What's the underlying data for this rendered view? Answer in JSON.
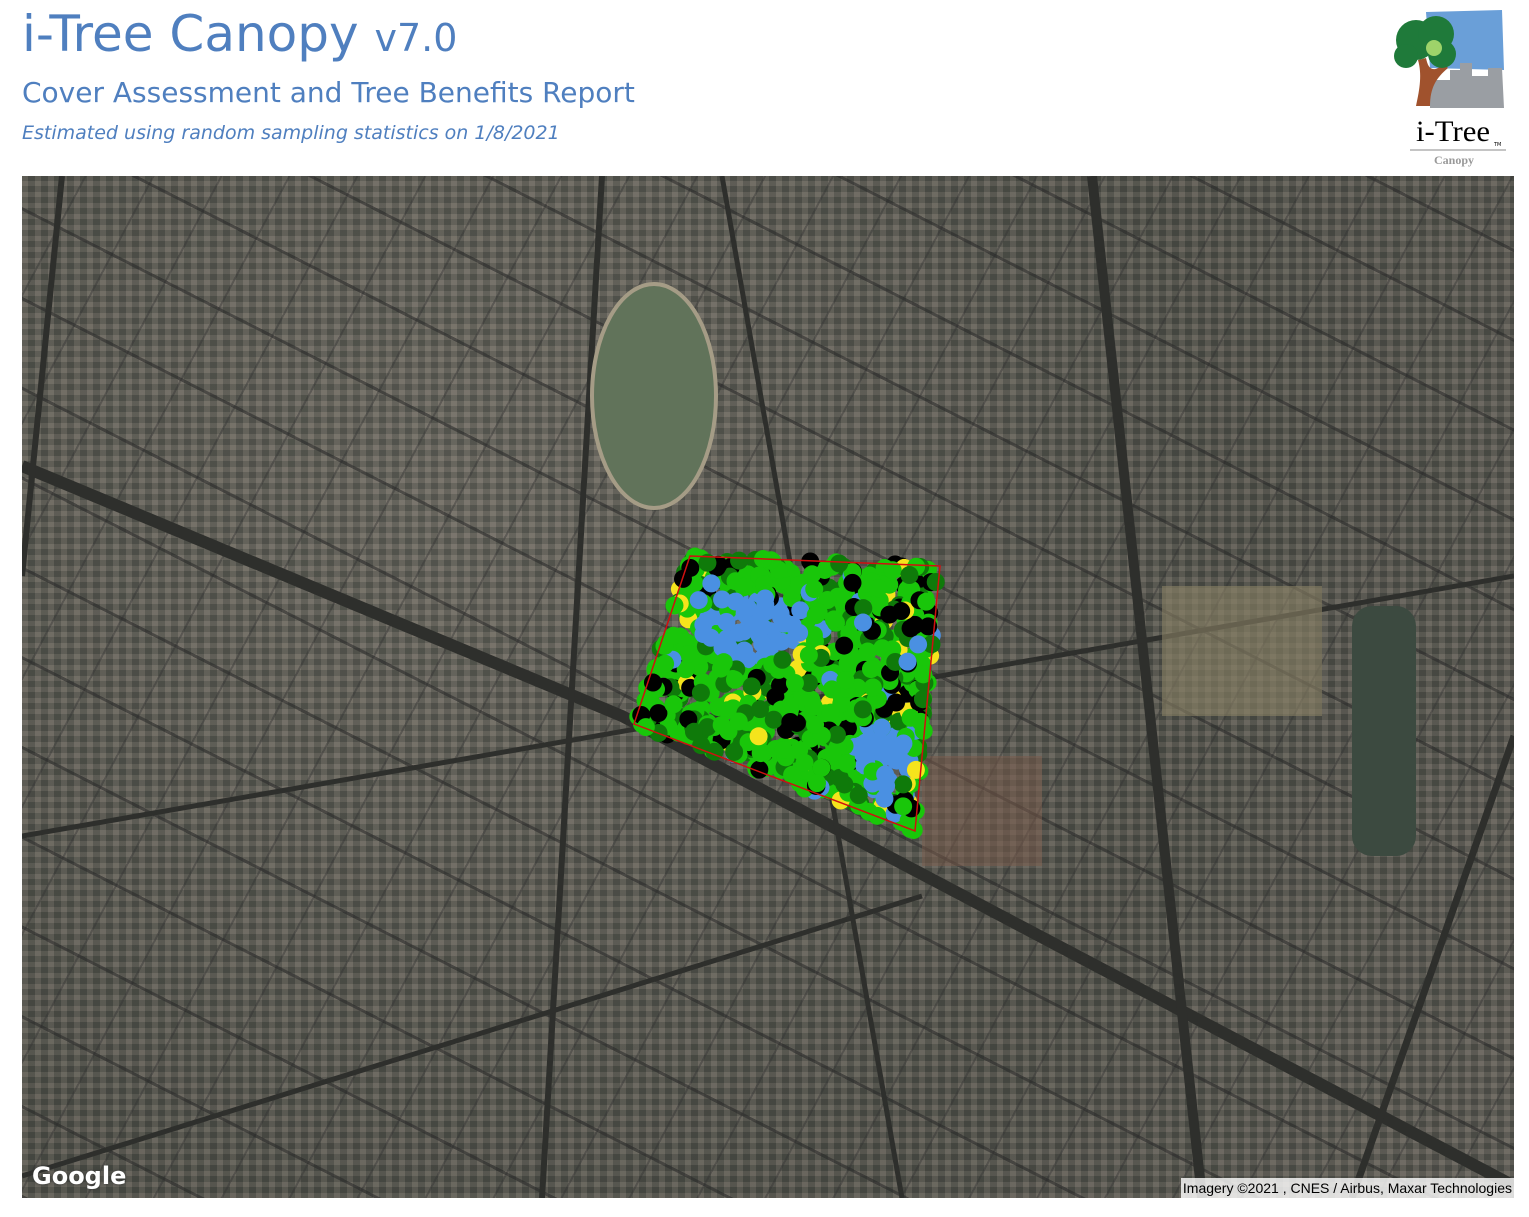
{
  "header": {
    "app_name": "i-Tree Canopy",
    "version": "v7.0",
    "report_title": "Cover Assessment and Tree Benefits Report",
    "estimate_note": "Estimated using random sampling statistics on 1/8/2021"
  },
  "logo": {
    "wordmark": "i-Tree",
    "product": "Canopy",
    "tm": "TM"
  },
  "map": {
    "provider": "Google",
    "attribution": "Imagery ©2021 , CNES / Airbus, Maxar Technologies",
    "boundary_color": "#d01010",
    "point_colors": {
      "tree": "#19c60a",
      "dark_tree": "#0f7a0a",
      "blue": "#4a90e2",
      "yellow": "#f5e41c",
      "black": "#000000"
    }
  }
}
